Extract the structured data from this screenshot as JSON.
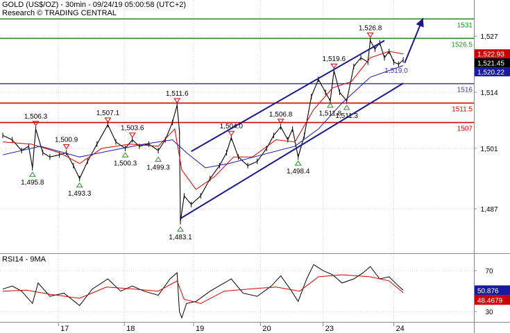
{
  "header": {
    "title": "GOLD (US$/OZ) - 30min - 09/24/19 05:00:58 (UTC+2)",
    "source": "Research © TRADING CENTRAL"
  },
  "colors": {
    "price": "#000000",
    "ma_fast": "#cc0000",
    "ma_slow": "#1a1aa0",
    "channel": "#1a1a80",
    "level_green": "#2b8a2b",
    "level_blue": "#3a3aa8",
    "level_red": "#cc0000",
    "rsi": "#000000",
    "rsi_ma": "#cc0000"
  },
  "chart_data": [
    {
      "type": "line",
      "panel": "price",
      "ylim": [
        1476.7,
        1535.4
      ],
      "xlim": [
        0,
        1
      ],
      "y_ticks": [
        "1,527",
        "1,514",
        "1,501",
        "1,487"
      ],
      "x_ticks": [
        "17",
        "18",
        "19",
        "20",
        "23",
        "24"
      ],
      "grid": true,
      "levels": [
        {
          "label": "1531",
          "value": 1531,
          "color": "green"
        },
        {
          "label": "1526.5",
          "value": 1526.5,
          "color": "green"
        },
        {
          "label": "1516",
          "value": 1516,
          "color": "blue"
        },
        {
          "label": "1511.5",
          "value": 1511.5,
          "color": "red"
        },
        {
          "label": "1507",
          "value": 1507,
          "color": "red"
        }
      ],
      "price_badges": [
        {
          "label": "1,522.93",
          "value": 1522.93,
          "bg": "#cc0000",
          "fg": "#ffffff"
        },
        {
          "label": "1,521.45",
          "value": 1521.45,
          "bg": "#000000",
          "fg": "#ffffff"
        },
        {
          "label": "1,520.22",
          "value": 1520.22,
          "bg": "#1a1aa0",
          "fg": "#ffffff"
        }
      ],
      "annotations": [
        {
          "label": "1,506.3",
          "x": 0.07,
          "y": 1506.3,
          "kind": "high"
        },
        {
          "label": "1,495.8",
          "x": 0.063,
          "y": 1495.8,
          "kind": "low"
        },
        {
          "label": "1,500.9",
          "x": 0.135,
          "y": 1500.9,
          "kind": "high"
        },
        {
          "label": "1,493.3",
          "x": 0.163,
          "y": 1493.3,
          "kind": "low"
        },
        {
          "label": "1,507.1",
          "x": 0.223,
          "y": 1507.1,
          "kind": "high"
        },
        {
          "label": "1,503.6",
          "x": 0.275,
          "y": 1503.6,
          "kind": "high"
        },
        {
          "label": "1,500.3",
          "x": 0.26,
          "y": 1500.3,
          "kind": "low"
        },
        {
          "label": "1,499.3",
          "x": 0.33,
          "y": 1499.3,
          "kind": "low"
        },
        {
          "label": "1,511.6",
          "x": 0.37,
          "y": 1511.6,
          "kind": "high"
        },
        {
          "label": "1,483.1",
          "x": 0.377,
          "y": 1483.1,
          "kind": "low"
        },
        {
          "label": "1,504.0",
          "x": 0.485,
          "y": 1504.0,
          "kind": "high"
        },
        {
          "label": "1,506.8",
          "x": 0.59,
          "y": 1506.8,
          "kind": "high"
        },
        {
          "label": "1,498.4",
          "x": 0.627,
          "y": 1498.4,
          "kind": "low"
        },
        {
          "label": "1,519.6",
          "x": 0.703,
          "y": 1519.6,
          "kind": "high"
        },
        {
          "label": "1,511.8",
          "x": 0.695,
          "y": 1511.8,
          "kind": "low"
        },
        {
          "label": "1,511.3",
          "x": 0.73,
          "y": 1511.3,
          "kind": "low"
        },
        {
          "label": "1,526.8",
          "x": 0.78,
          "y": 1526.8,
          "kind": "high"
        },
        {
          "label": "1,519.0",
          "x": 0.835,
          "y": 1519.0,
          "kind": "level"
        }
      ],
      "channel": {
        "upper": [
          [
            0.4,
            1500.3
          ],
          [
            0.81,
            1526.0
          ]
        ],
        "lower": [
          [
            0.378,
            1484.8
          ],
          [
            0.85,
            1516.1
          ]
        ],
        "arrow": [
          [
            0.853,
            1520.8
          ],
          [
            0.892,
            1531.2
          ]
        ]
      },
      "series": [
        {
          "role": "price",
          "points": [
            [
              0.0,
              1504.0
            ],
            [
              0.02,
              1503.0
            ],
            [
              0.04,
              1500.5
            ],
            [
              0.055,
              1501.5
            ],
            [
              0.063,
              1496.5
            ],
            [
              0.07,
              1505.5
            ],
            [
              0.085,
              1500.0
            ],
            [
              0.1,
              1499.0
            ],
            [
              0.12,
              1499.5
            ],
            [
              0.135,
              1500.0
            ],
            [
              0.15,
              1497.0
            ],
            [
              0.163,
              1494.0
            ],
            [
              0.18,
              1498.0
            ],
            [
              0.2,
              1502.0
            ],
            [
              0.223,
              1506.5
            ],
            [
              0.24,
              1502.5
            ],
            [
              0.26,
              1501.0
            ],
            [
              0.275,
              1503.0
            ],
            [
              0.29,
              1501.5
            ],
            [
              0.31,
              1502.0
            ],
            [
              0.33,
              1500.5
            ],
            [
              0.345,
              1503.0
            ],
            [
              0.36,
              1507.0
            ],
            [
              0.37,
              1511.0
            ],
            [
              0.375,
              1505.0
            ],
            [
              0.377,
              1484.0
            ],
            [
              0.385,
              1490.0
            ],
            [
              0.4,
              1488.0
            ],
            [
              0.42,
              1490.0
            ],
            [
              0.44,
              1494.0
            ],
            [
              0.46,
              1497.0
            ],
            [
              0.475,
              1500.0
            ],
            [
              0.485,
              1503.5
            ],
            [
              0.5,
              1499.0
            ],
            [
              0.52,
              1497.0
            ],
            [
              0.54,
              1498.0
            ],
            [
              0.56,
              1501.0
            ],
            [
              0.575,
              1504.0
            ],
            [
              0.59,
              1506.0
            ],
            [
              0.605,
              1503.0
            ],
            [
              0.615,
              1505.5
            ],
            [
              0.627,
              1499.0
            ],
            [
              0.64,
              1504.0
            ],
            [
              0.655,
              1513.0
            ],
            [
              0.67,
              1517.0
            ],
            [
              0.685,
              1514.0
            ],
            [
              0.695,
              1512.0
            ],
            [
              0.703,
              1519.0
            ],
            [
              0.715,
              1514.0
            ],
            [
              0.73,
              1512.0
            ],
            [
              0.745,
              1520.0
            ],
            [
              0.76,
              1522.0
            ],
            [
              0.775,
              1521.0
            ],
            [
              0.78,
              1526.0
            ],
            [
              0.79,
              1524.0
            ],
            [
              0.8,
              1525.5
            ],
            [
              0.81,
              1522.0
            ],
            [
              0.82,
              1523.5
            ],
            [
              0.83,
              1521.0
            ],
            [
              0.84,
              1520.5
            ],
            [
              0.85,
              1521.5
            ]
          ]
        },
        {
          "role": "ma_fast",
          "points": [
            [
              0.0,
              1502.5
            ],
            [
              0.06,
              1502.0
            ],
            [
              0.12,
              1500.0
            ],
            [
              0.163,
              1497.5
            ],
            [
              0.21,
              1501.0
            ],
            [
              0.27,
              1502.0
            ],
            [
              0.33,
              1501.5
            ],
            [
              0.365,
              1505.5
            ],
            [
              0.38,
              1496.0
            ],
            [
              0.41,
              1491.5
            ],
            [
              0.45,
              1494.5
            ],
            [
              0.49,
              1499.0
            ],
            [
              0.53,
              1499.0
            ],
            [
              0.58,
              1503.0
            ],
            [
              0.62,
              1502.5
            ],
            [
              0.66,
              1510.0
            ],
            [
              0.7,
              1515.0
            ],
            [
              0.74,
              1516.5
            ],
            [
              0.78,
              1522.0
            ],
            [
              0.82,
              1523.5
            ],
            [
              0.85,
              1522.9
            ]
          ]
        },
        {
          "role": "ma_slow",
          "points": [
            [
              0.0,
              1499.5
            ],
            [
              0.08,
              1501.5
            ],
            [
              0.163,
              1499.0
            ],
            [
              0.23,
              1500.5
            ],
            [
              0.3,
              1502.0
            ],
            [
              0.36,
              1503.0
            ],
            [
              0.39,
              1500.0
            ],
            [
              0.43,
              1496.5
            ],
            [
              0.48,
              1497.5
            ],
            [
              0.55,
              1499.5
            ],
            [
              0.62,
              1501.5
            ],
            [
              0.67,
              1505.5
            ],
            [
              0.72,
              1511.5
            ],
            [
              0.78,
              1517.5
            ],
            [
              0.85,
              1520.2
            ]
          ]
        }
      ]
    },
    {
      "type": "line",
      "panel": "rsi",
      "title": "RSI14 - 9MA",
      "ylim": [
        20,
        85
      ],
      "xlim": [
        0,
        1
      ],
      "y_ticks": [
        "70",
        "30"
      ],
      "x_ticks": [
        "17",
        "18",
        "19",
        "20",
        "23",
        "24"
      ],
      "badges": [
        {
          "label": "50.876",
          "value": 50.876,
          "bg": "#1a1aa0",
          "fg": "#ffffff"
        },
        {
          "label": "48.4679",
          "value": 48.4679,
          "bg": "#cc0000",
          "fg": "#ffffff"
        }
      ],
      "series": [
        {
          "role": "rsi",
          "points": [
            [
              0.0,
              52
            ],
            [
              0.02,
              55
            ],
            [
              0.04,
              50
            ],
            [
              0.063,
              38
            ],
            [
              0.075,
              58
            ],
            [
              0.1,
              45
            ],
            [
              0.13,
              48
            ],
            [
              0.163,
              36
            ],
            [
              0.19,
              52
            ],
            [
              0.223,
              62
            ],
            [
              0.25,
              50
            ],
            [
              0.275,
              55
            ],
            [
              0.3,
              50
            ],
            [
              0.33,
              46
            ],
            [
              0.355,
              62
            ],
            [
              0.37,
              68
            ],
            [
              0.375,
              30
            ],
            [
              0.38,
              24
            ],
            [
              0.39,
              38
            ],
            [
              0.41,
              40
            ],
            [
              0.44,
              50
            ],
            [
              0.47,
              58
            ],
            [
              0.485,
              62
            ],
            [
              0.51,
              48
            ],
            [
              0.54,
              45
            ],
            [
              0.57,
              55
            ],
            [
              0.59,
              65
            ],
            [
              0.61,
              52
            ],
            [
              0.627,
              40
            ],
            [
              0.645,
              62
            ],
            [
              0.66,
              76
            ],
            [
              0.68,
              70
            ],
            [
              0.7,
              66
            ],
            [
              0.72,
              58
            ],
            [
              0.745,
              62
            ],
            [
              0.765,
              68
            ],
            [
              0.78,
              74
            ],
            [
              0.8,
              62
            ],
            [
              0.82,
              64
            ],
            [
              0.84,
              55
            ],
            [
              0.85,
              51
            ]
          ]
        },
        {
          "role": "rsi_ma",
          "points": [
            [
              0.0,
              50
            ],
            [
              0.05,
              51
            ],
            [
              0.1,
              47
            ],
            [
              0.163,
              43
            ],
            [
              0.22,
              54
            ],
            [
              0.28,
              52
            ],
            [
              0.33,
              50
            ],
            [
              0.37,
              60
            ],
            [
              0.385,
              42
            ],
            [
              0.42,
              38
            ],
            [
              0.47,
              50
            ],
            [
              0.52,
              52
            ],
            [
              0.58,
              54
            ],
            [
              0.63,
              50
            ],
            [
              0.67,
              64
            ],
            [
              0.72,
              66
            ],
            [
              0.78,
              64
            ],
            [
              0.82,
              60
            ],
            [
              0.85,
              48.5
            ]
          ]
        }
      ]
    }
  ]
}
